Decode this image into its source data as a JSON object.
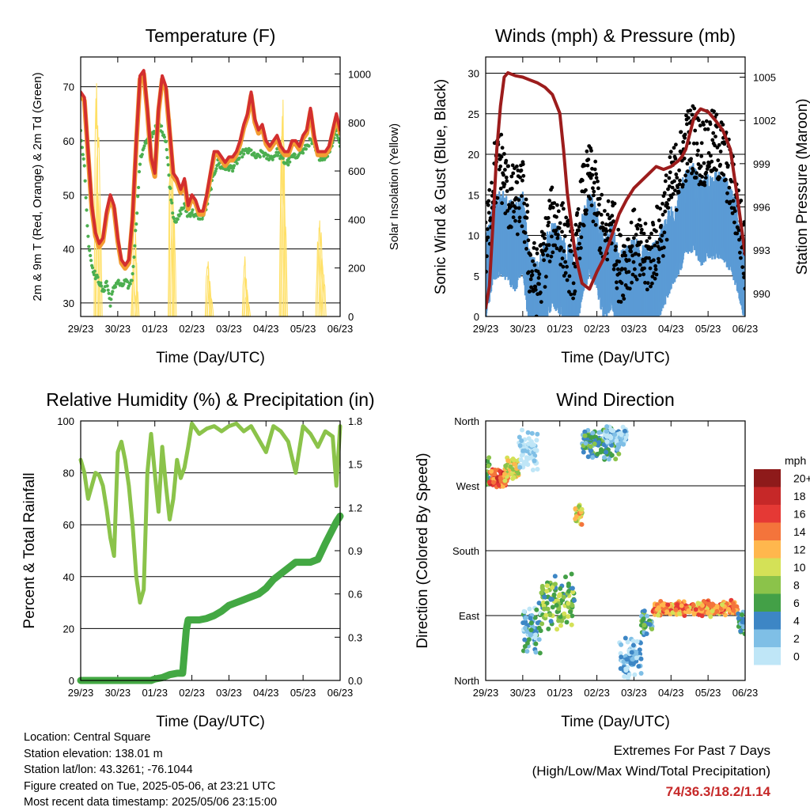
{
  "info": {
    "location": "Location: Central Square",
    "elevation": "Station elevation: 138.01 m",
    "latlon": "Station lat/lon: 43.3261; -76.1044",
    "created": "Figure created on Tue, 2025-05-06, at 23:21 UTC",
    "recent": "Most recent data timestamp: 2025/05/06 23:15:00"
  },
  "extremes": {
    "title": "Extremes For Past 7 Days",
    "subtitle": "(High/Low/Max Wind/Total Precipitation)",
    "values": "74/36.3/18.2/1.14"
  },
  "chart_data": [
    {
      "id": "temperature",
      "type": "line",
      "title": "Temperature (F)",
      "xlabel": "Time (Day/UTC)",
      "ylabel": "2m & 9m T (Red, Orange) & 2m Td (Green)",
      "y2label": "Solar Insolation (Yellow)",
      "x_ticks": [
        "29/23",
        "30/23",
        "01/23",
        "02/23",
        "03/23",
        "04/23",
        "05/23",
        "06/23"
      ],
      "xlim": [
        0,
        7
      ],
      "ylim": [
        27.5,
        75.5
      ],
      "y_ticks": [
        30,
        40,
        50,
        60,
        70
      ],
      "y2lim": [
        0,
        1070
      ],
      "y2_ticks": [
        0,
        200,
        400,
        600,
        800,
        1000
      ],
      "colors": {
        "t2m": "#d32f2f",
        "t9m": "#f39c32",
        "td": "#4caf50",
        "solar": "#ffe066"
      },
      "series": [
        {
          "name": "2m T",
          "key": "t2m",
          "x": [
            0,
            0.1,
            0.2,
            0.3,
            0.4,
            0.5,
            0.6,
            0.7,
            0.8,
            0.9,
            1.0,
            1.1,
            1.2,
            1.3,
            1.4,
            1.5,
            1.6,
            1.7,
            1.8,
            1.9,
            2.0,
            2.1,
            2.2,
            2.3,
            2.4,
            2.5,
            2.6,
            2.7,
            2.8,
            2.9,
            3.0,
            3.1,
            3.2,
            3.3,
            3.4,
            3.5,
            3.6,
            3.7,
            3.8,
            3.9,
            4.0,
            4.1,
            4.2,
            4.3,
            4.4,
            4.5,
            4.6,
            4.7,
            4.8,
            4.9,
            5.0,
            5.1,
            5.2,
            5.3,
            5.4,
            5.5,
            5.6,
            5.7,
            5.8,
            5.9,
            6.0,
            6.1,
            6.2,
            6.3,
            6.4,
            6.5,
            6.6,
            6.7,
            6.8,
            6.9,
            7.0
          ],
          "y": [
            69,
            68,
            58,
            48,
            43,
            41,
            42,
            47,
            50,
            48,
            42,
            38,
            37,
            38,
            46,
            60,
            72,
            73,
            66,
            57,
            54,
            66,
            72,
            70,
            62,
            54,
            53,
            51,
            53,
            48,
            50,
            49,
            47,
            47,
            50,
            54,
            58,
            58,
            57,
            56,
            57,
            57,
            58,
            60,
            63,
            65,
            69,
            64,
            62,
            63,
            60,
            59,
            60,
            61,
            59,
            58,
            58,
            60,
            60,
            59,
            61,
            62,
            66,
            61,
            58,
            58,
            58,
            59,
            62,
            65,
            62
          ]
        },
        {
          "name": "Td",
          "key": "td",
          "x": [
            0,
            0.1,
            0.2,
            0.3,
            0.4,
            0.5,
            0.6,
            0.7,
            0.8,
            0.9,
            1.0,
            1.1,
            1.2,
            1.3,
            1.4,
            1.5,
            1.6,
            1.7,
            1.8,
            1.9,
            2.0,
            2.1,
            2.2,
            2.3,
            2.4,
            2.5,
            2.6,
            2.7,
            2.8,
            2.9,
            3.0,
            3.1,
            3.2,
            3.3,
            3.4,
            3.5,
            3.6,
            3.7,
            3.8,
            3.9,
            4.0,
            4.1,
            4.2,
            4.3,
            4.4,
            4.5,
            4.6,
            4.7,
            4.8,
            4.9,
            5.0,
            5.1,
            5.2,
            5.3,
            5.4,
            5.5,
            5.6,
            5.7,
            5.8,
            5.9,
            6.0,
            6.1,
            6.2,
            6.3,
            6.4,
            6.5,
            6.6,
            6.7,
            6.8,
            6.9,
            7.0
          ],
          "y": [
            62,
            55,
            42,
            37,
            35,
            34,
            32,
            34,
            30,
            33,
            34,
            33,
            34,
            33,
            35,
            45,
            56,
            59,
            60,
            61,
            62,
            63,
            62,
            60,
            52,
            46,
            45,
            47,
            48,
            46,
            47,
            46,
            46,
            46,
            48,
            51,
            54,
            56,
            55,
            55,
            55,
            55,
            56,
            57,
            58,
            58,
            58,
            57,
            57,
            58,
            57,
            57,
            57,
            58,
            57,
            56,
            56,
            57,
            57,
            58,
            58,
            59,
            60,
            59,
            57,
            57,
            57,
            58,
            60,
            62,
            59
          ]
        }
      ],
      "solar": {
        "name": "Solar Insolation",
        "key": "solar",
        "peaks_x": [
          0.42,
          0.45,
          0.48,
          0.52,
          1.42,
          1.45,
          1.48,
          1.52,
          2.42,
          2.45,
          2.48,
          2.52,
          3.42,
          3.45,
          3.48,
          3.52,
          4.42,
          4.45,
          4.48,
          4.52,
          5.42,
          5.45,
          5.48,
          5.52,
          6.4,
          6.44,
          6.48,
          6.52,
          6.56
        ],
        "peaks_y": [
          1030,
          700,
          960,
          500,
          200,
          500,
          350,
          120,
          820,
          980,
          640,
          420,
          280,
          200,
          160,
          90,
          260,
          180,
          120,
          60,
          880,
          980,
          760,
          420,
          320,
          420,
          360,
          280,
          180
        ],
        "width": 0.12
      }
    },
    {
      "id": "winds",
      "type": "scatter",
      "title": "Winds (mph) & Pressure (mb)",
      "xlabel": "Time (Day/UTC)",
      "ylabel": "Sonic Wind & Gust (Blue, Black)",
      "y2label": "Station Pressure (Maroon)",
      "x_ticks": [
        "29/23",
        "30/23",
        "01/23",
        "02/23",
        "03/23",
        "04/23",
        "05/23",
        "06/23"
      ],
      "xlim": [
        0,
        7
      ],
      "ylim": [
        0,
        32
      ],
      "y_ticks": [
        0,
        5,
        10,
        15,
        20,
        25,
        30
      ],
      "y2lim": [
        988.4,
        1006.4
      ],
      "y2_ticks": [
        990,
        993,
        996,
        999,
        1002,
        1005
      ],
      "colors": {
        "wind": "#5b9bd5",
        "gust": "#000000",
        "pressure": "#9c1c1c"
      },
      "wind_mean": {
        "x": [
          0,
          0.2,
          0.4,
          0.6,
          0.8,
          1.0,
          1.2,
          1.4,
          1.6,
          1.8,
          2.0,
          2.2,
          2.4,
          2.6,
          2.8,
          3.0,
          3.2,
          3.4,
          3.6,
          3.8,
          4.0,
          4.2,
          4.4,
          4.6,
          4.8,
          5.0,
          5.2,
          5.4,
          5.6,
          5.8,
          6.0,
          6.2,
          6.4,
          6.6,
          6.8,
          7.0
        ],
        "y": [
          4,
          9,
          10,
          9,
          8,
          10,
          2,
          1,
          4,
          6,
          5,
          3,
          2,
          7,
          10,
          8,
          4,
          6,
          2,
          3,
          4,
          3,
          3,
          4,
          6,
          8,
          10,
          12,
          13,
          11,
          12,
          12,
          12,
          10,
          8,
          4
        ]
      },
      "gust_mean": {
        "x": [
          0,
          0.2,
          0.4,
          0.6,
          0.8,
          1.0,
          1.2,
          1.4,
          1.6,
          1.8,
          2.0,
          2.2,
          2.4,
          2.6,
          2.8,
          3.0,
          3.2,
          3.4,
          3.6,
          3.8,
          4.0,
          4.2,
          4.4,
          4.6,
          4.8,
          5.0,
          5.2,
          5.4,
          5.6,
          5.8,
          6.0,
          6.2,
          6.4,
          6.6,
          6.8,
          7.0
        ],
        "y": [
          8,
          17,
          19,
          15,
          14,
          15,
          6,
          4,
          8,
          12,
          11,
          8,
          6,
          14,
          17,
          14,
          9,
          12,
          6,
          7,
          9,
          7,
          7,
          9,
          12,
          16,
          18,
          21,
          22,
          20,
          21,
          21,
          20,
          17,
          13,
          7
        ]
      },
      "pressure": {
        "x": [
          0,
          0.1,
          0.2,
          0.3,
          0.4,
          0.5,
          0.6,
          0.8,
          1.0,
          1.2,
          1.4,
          1.6,
          1.8,
          2.0,
          2.1,
          2.2,
          2.3,
          2.4,
          2.5,
          2.6,
          2.8,
          3.0,
          3.2,
          3.4,
          3.6,
          3.8,
          4.0,
          4.2,
          4.4,
          4.6,
          4.8,
          5.0,
          5.2,
          5.3,
          5.4,
          5.5,
          5.6,
          5.7,
          5.8,
          6.0,
          6.2,
          6.4,
          6.6,
          6.8,
          7.0
        ],
        "y": [
          989,
          990.5,
          995,
          1000,
          1003,
          1005,
          1005.3,
          1005.1,
          1005,
          1004.8,
          1004.6,
          1004.3,
          1003.8,
          1002.5,
          1000,
          997,
          995,
          993,
          991.8,
          990.7,
          990.3,
          991.5,
          992.5,
          994,
          995.5,
          996.5,
          997.3,
          997.8,
          998.3,
          998.8,
          998.6,
          998.8,
          999.2,
          999.5,
          1000,
          1001,
          1002,
          1002.5,
          1002.8,
          1002.6,
          1002,
          1001.3,
          1000,
          996.5,
          992.7
        ]
      }
    },
    {
      "id": "humidity",
      "type": "line",
      "title": "Relative Humidity (%) & Precipitation (in)",
      "xlabel": "Time (Day/UTC)",
      "ylabel": "Percent & Total Rainfall",
      "x_ticks": [
        "29/23",
        "30/23",
        "01/23",
        "02/23",
        "03/23",
        "04/23",
        "05/23",
        "06/23"
      ],
      "xlim": [
        0,
        7
      ],
      "ylim": [
        0,
        100
      ],
      "y_ticks": [
        0,
        20,
        40,
        60,
        80,
        100
      ],
      "y2lim": [
        0,
        1.8
      ],
      "y2_ticks": [
        "0.0",
        "0.3",
        "0.6",
        "0.9",
        "1.2",
        "1.5",
        "1.8"
      ],
      "colors": {
        "rh": "#8bc34a",
        "precip": "#43a843"
      },
      "series": [
        {
          "name": "RH",
          "key": "rh",
          "x": [
            0,
            0.1,
            0.2,
            0.3,
            0.4,
            0.5,
            0.6,
            0.7,
            0.8,
            0.9,
            1.0,
            1.1,
            1.2,
            1.3,
            1.4,
            1.5,
            1.6,
            1.7,
            1.8,
            1.9,
            2.0,
            2.1,
            2.2,
            2.3,
            2.4,
            2.5,
            2.6,
            2.7,
            2.8,
            2.9,
            3.0,
            3.2,
            3.4,
            3.6,
            3.8,
            4.0,
            4.2,
            4.4,
            4.6,
            4.8,
            5.0,
            5.2,
            5.4,
            5.6,
            5.8,
            6.0,
            6.2,
            6.4,
            6.6,
            6.8,
            6.9,
            7.0
          ],
          "y": [
            85,
            80,
            70,
            75,
            80,
            79,
            75,
            66,
            55,
            48,
            88,
            92,
            85,
            75,
            60,
            40,
            30,
            35,
            80,
            95,
            80,
            65,
            90,
            75,
            62,
            70,
            85,
            78,
            82,
            90,
            99,
            95,
            97,
            98,
            96,
            98,
            99,
            96,
            98,
            93,
            88,
            98,
            96,
            92,
            80,
            98,
            95,
            90,
            96,
            94,
            75,
            98
          ]
        },
        {
          "name": "Total Precipitation",
          "key": "precip",
          "axis": "y2",
          "x": [
            0,
            0.5,
            1.0,
            1.5,
            1.9,
            2.0,
            2.2,
            2.4,
            2.6,
            2.75,
            2.8,
            2.85,
            2.9,
            3.2,
            3.4,
            3.6,
            3.8,
            4.0,
            4.2,
            4.4,
            4.6,
            4.8,
            5.0,
            5.2,
            5.4,
            5.6,
            5.8,
            6.0,
            6.2,
            6.4,
            6.6,
            6.8,
            6.9,
            7.0
          ],
          "y": [
            0,
            0,
            0,
            0,
            0,
            0.01,
            0.02,
            0.04,
            0.05,
            0.05,
            0.2,
            0.35,
            0.42,
            0.42,
            0.43,
            0.45,
            0.48,
            0.52,
            0.54,
            0.56,
            0.58,
            0.6,
            0.64,
            0.7,
            0.74,
            0.78,
            0.82,
            0.82,
            0.82,
            0.84,
            0.95,
            1.05,
            1.1,
            1.14
          ]
        }
      ]
    },
    {
      "id": "direction",
      "type": "scatter",
      "title": "Wind Direction",
      "xlabel": "Time (Day/UTC)",
      "ylabel": "Direction (Colored By Speed)",
      "x_ticks": [
        "29/23",
        "30/23",
        "01/23",
        "02/23",
        "03/23",
        "04/23",
        "05/23",
        "06/23"
      ],
      "xlim": [
        0,
        7
      ],
      "ylim": [
        0,
        360
      ],
      "y_ticks": [
        "North",
        "East",
        "South",
        "West",
        "North"
      ],
      "colorbar": {
        "title": "mph",
        "labels": [
          "0",
          "2",
          "4",
          "6",
          "8",
          "10",
          "12",
          "14",
          "16",
          "18",
          "20+"
        ],
        "colors": [
          "#bfe6f7",
          "#7fbfe6",
          "#3d86c5",
          "#43a047",
          "#8bc34a",
          "#d4e157",
          "#ffb74d",
          "#f4743b",
          "#e53935",
          "#c62828",
          "#8e1a1a"
        ]
      },
      "clusters": [
        {
          "x0": 0.0,
          "x1": 0.1,
          "dir": 290,
          "spread": 30,
          "speed": 8
        },
        {
          "x0": 0.1,
          "x1": 0.6,
          "dir": 280,
          "spread": 15,
          "speed": 16
        },
        {
          "x0": 0.5,
          "x1": 0.9,
          "dir": 295,
          "spread": 20,
          "speed": 11
        },
        {
          "x0": 0.9,
          "x1": 1.4,
          "dir": 320,
          "spread": 30,
          "speed": 1
        },
        {
          "x0": 1.0,
          "x1": 1.5,
          "dir": 70,
          "spread": 40,
          "speed": 4
        },
        {
          "x0": 1.5,
          "x1": 2.4,
          "dir": 110,
          "spread": 40,
          "speed": 8
        },
        {
          "x0": 2.4,
          "x1": 2.6,
          "dir": 230,
          "spread": 20,
          "speed": 12
        },
        {
          "x0": 2.6,
          "x1": 3.6,
          "dir": 330,
          "spread": 25,
          "speed": 6
        },
        {
          "x0": 3.2,
          "x1": 3.8,
          "dir": 340,
          "spread": 15,
          "speed": 2
        },
        {
          "x0": 3.6,
          "x1": 4.2,
          "dir": 30,
          "spread": 30,
          "speed": 3
        },
        {
          "x0": 4.2,
          "x1": 4.5,
          "dir": 80,
          "spread": 20,
          "speed": 6
        },
        {
          "x0": 4.5,
          "x1": 6.8,
          "dir": 100,
          "spread": 12,
          "speed": 14
        },
        {
          "x0": 6.8,
          "x1": 7.0,
          "dir": 80,
          "spread": 20,
          "speed": 5
        }
      ]
    }
  ]
}
